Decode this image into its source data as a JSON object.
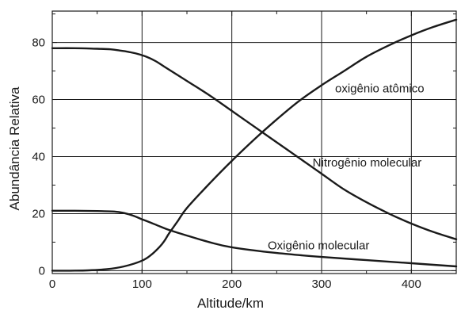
{
  "chart_data": {
    "type": "line",
    "title": "",
    "xlabel": "Altitude/km",
    "ylabel": "Abundância Relativa",
    "xlim": [
      0,
      450
    ],
    "ylim": [
      -1,
      91
    ],
    "xticks": [
      0,
      100,
      200,
      300,
      400
    ],
    "yticks": [
      0,
      20,
      40,
      60,
      80
    ],
    "grid": true,
    "legend": "none",
    "line_color": "#1a1a1a",
    "series": [
      {
        "name": "oxigênio atômico",
        "x": [
          0,
          20,
          40,
          60,
          80,
          100,
          110,
          120,
          125,
          130,
          140,
          150,
          175,
          200,
          225,
          250,
          275,
          300,
          325,
          350,
          375,
          400,
          425,
          450
        ],
        "y": [
          0,
          0,
          0.1,
          0.5,
          1.5,
          3.5,
          5.5,
          8.5,
          10.5,
          13,
          17.5,
          22,
          30.5,
          38.5,
          46,
          53,
          59.5,
          65,
          70,
          75,
          79,
          82.5,
          85.5,
          88
        ]
      },
      {
        "name": "Nitrogênio molecular",
        "x": [
          0,
          25,
          50,
          65,
          75,
          85,
          95,
          105,
          115,
          125,
          150,
          175,
          200,
          225,
          250,
          275,
          300,
          325,
          350,
          375,
          400,
          425,
          450
        ],
        "y": [
          78,
          78,
          77.8,
          77.6,
          77.2,
          76.7,
          76,
          75,
          73.5,
          71.5,
          66.5,
          61.5,
          56,
          50.5,
          45,
          39.5,
          34,
          28.5,
          24,
          20,
          16.5,
          13.5,
          11
        ]
      },
      {
        "name": "Oxigênio molecular",
        "x": [
          0,
          25,
          50,
          70,
          80,
          90,
          100,
          110,
          120,
          130,
          150,
          175,
          200,
          250,
          300,
          350,
          400,
          450
        ],
        "y": [
          21,
          21,
          20.9,
          20.7,
          20.2,
          19.3,
          18,
          16.8,
          15.5,
          14.3,
          12.3,
          10,
          8.2,
          6.2,
          4.8,
          3.7,
          2.6,
          1.5
        ]
      }
    ]
  }
}
